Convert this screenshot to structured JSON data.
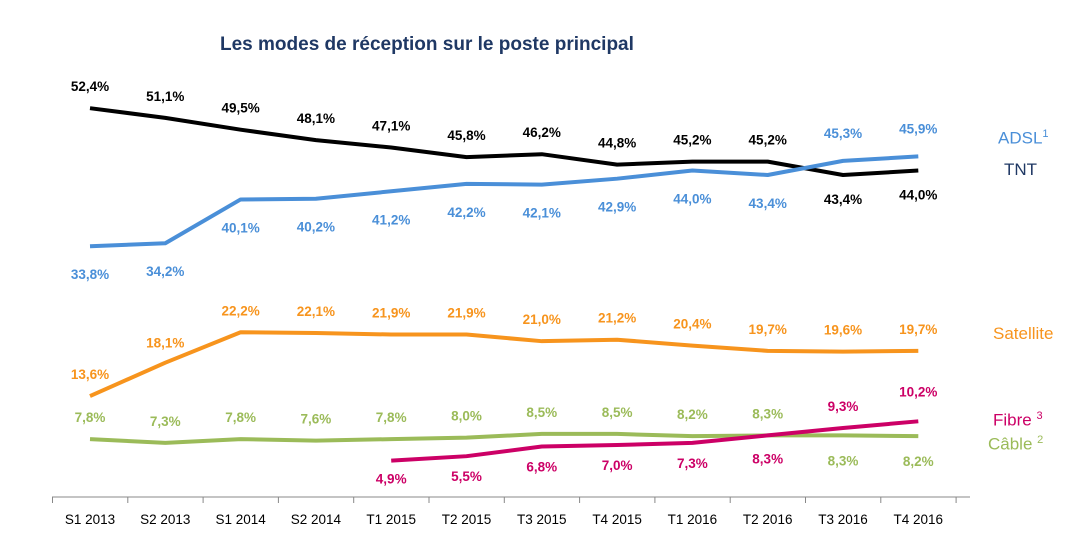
{
  "chart_data": {
    "type": "line",
    "title": "Les modes de réception sur le poste principal",
    "xlabel": "",
    "ylabel": "",
    "ylim": [
      0,
      57
    ],
    "grid": false,
    "legend_placement": "right",
    "categories": [
      "S1 2013",
      "S2 2013",
      "S1 2014",
      "S2 2014",
      "T1 2015",
      "T2 2015",
      "T3 2015",
      "T4 2015",
      "T1 2016",
      "T2 2016",
      "T3 2016",
      "T4 2016"
    ],
    "series": [
      {
        "name": "TNT",
        "legend": "TNT",
        "sup": "",
        "color": "#000000",
        "values": [
          52.4,
          51.1,
          49.5,
          48.1,
          47.1,
          45.8,
          46.2,
          44.8,
          45.2,
          45.2,
          43.4,
          44.0
        ],
        "labels": [
          "52,4%",
          "51,1%",
          "49,5%",
          "48,1%",
          "47,1%",
          "45,8%",
          "46,2%",
          "44,8%",
          "45,2%",
          "45,2%",
          "43,4%",
          "44,0%"
        ]
      },
      {
        "name": "ADSL",
        "legend": "ADSL",
        "sup": "1",
        "color": "#4a8fd8",
        "values": [
          33.8,
          34.2,
          40.1,
          40.2,
          41.2,
          42.2,
          42.1,
          42.9,
          44.0,
          43.4,
          45.3,
          45.9
        ],
        "labels": [
          "33,8%",
          "34,2%",
          "40,1%",
          "40,2%",
          "41,2%",
          "42,2%",
          "42,1%",
          "42,9%",
          "44,0%",
          "43,4%",
          "45,3%",
          "45,9%"
        ]
      },
      {
        "name": "Satellite",
        "legend": "Satellite",
        "sup": "",
        "color": "#f7941d",
        "values": [
          13.6,
          18.1,
          22.2,
          22.1,
          21.9,
          21.9,
          21.0,
          21.2,
          20.4,
          19.7,
          19.6,
          19.7
        ],
        "labels": [
          "13,6%",
          "18,1%",
          "22,2%",
          "22,1%",
          "21,9%",
          "21,9%",
          "21,0%",
          "21,2%",
          "20,4%",
          "19,7%",
          "19,6%",
          "19,7%"
        ]
      },
      {
        "name": "Câble",
        "legend": "Câble",
        "sup": "2",
        "color": "#9bbb59",
        "values": [
          7.8,
          7.3,
          7.8,
          7.6,
          7.8,
          8.0,
          8.5,
          8.5,
          8.2,
          8.3,
          8.3,
          8.2
        ],
        "labels": [
          "7,8%",
          "7,3%",
          "7,8%",
          "7,6%",
          "7,8%",
          "8,0%",
          "8,5%",
          "8,5%",
          "8,2%",
          "8,3%",
          "8,3%",
          "8,2%"
        ]
      },
      {
        "name": "Fibre",
        "legend": "Fibre",
        "sup": "3",
        "color": "#cc0066",
        "values": [
          null,
          null,
          null,
          null,
          4.9,
          5.5,
          6.8,
          7.0,
          7.3,
          8.3,
          9.3,
          10.2
        ],
        "labels": [
          null,
          null,
          null,
          null,
          "4,9%",
          "5,5%",
          "6,8%",
          "7,0%",
          "7,3%",
          "8,3%",
          "9,3%",
          "10,2%"
        ]
      }
    ]
  }
}
